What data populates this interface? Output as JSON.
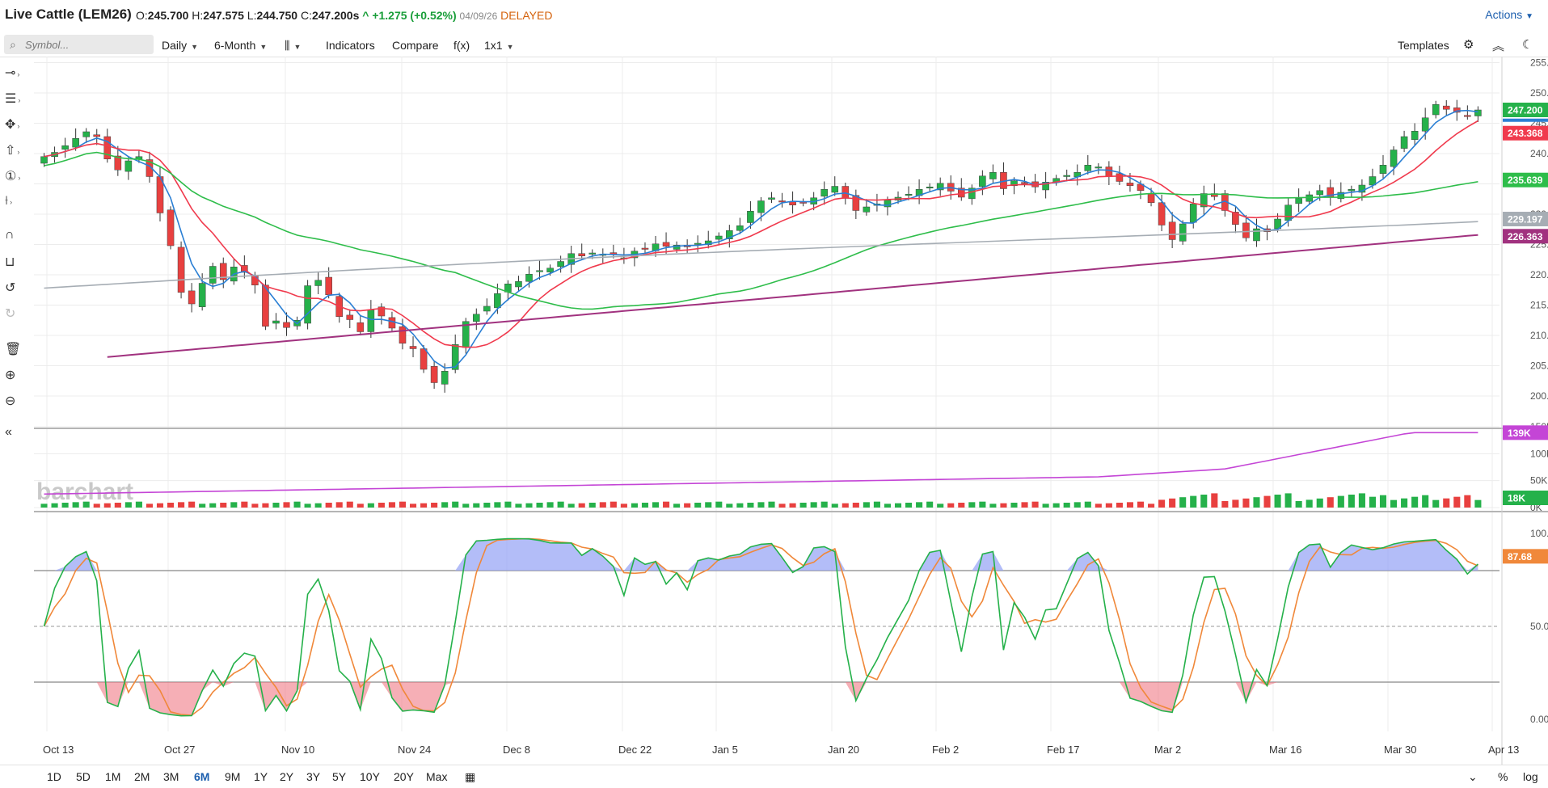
{
  "header": {
    "title": "Live Cattle (LEM26)",
    "open_label": "O:",
    "open": "245.700",
    "high_label": "H:",
    "high": "247.575",
    "low_label": "L:",
    "low": "244.750",
    "close_label": "C:",
    "close": "247.200s",
    "change": "^ +1.275 (+0.52%)",
    "date": "04/09/26",
    "status": "DELAYED",
    "actions_label": "Actions"
  },
  "toolbar": {
    "symbol_placeholder": "Symbol...",
    "interval": "Daily",
    "period": "6-Month",
    "chart_type_icon": "candlestick-icon",
    "indicators": "Indicators",
    "compare": "Compare",
    "fx": "f(x)",
    "layout": "1x1",
    "templates": "Templates"
  },
  "left_tools": [
    "crosshair-icon",
    "lines-icon",
    "move-icon",
    "shapes-icon",
    "annotation-icon",
    "measure-icon",
    "magnet-icon",
    "unlock-icon",
    "undo-icon",
    "redo-icon",
    "trash-icon",
    "zoom-in-icon",
    "zoom-out-icon",
    "collapse-icon"
  ],
  "ranges": [
    "1D",
    "5D",
    "1M",
    "2M",
    "3M",
    "6M",
    "9M",
    "1Y",
    "2Y",
    "3Y",
    "5Y",
    "10Y",
    "20Y",
    "Max"
  ],
  "active_range": "6M",
  "bottom_right": {
    "percent": "%",
    "log": "log"
  },
  "watermark": "barchart",
  "colors": {
    "up": "#25b14a",
    "down": "#e8403f",
    "ma_blue": "#2a7fd4",
    "ma_red": "#f03a4d",
    "ma_green": "#2ebd4a",
    "ma_gray": "#a6adb4",
    "ma_purple": "#a1327f",
    "volume_avg": "#c445d6",
    "stoch_k": "#25b14a",
    "stoch_d": "#f0883a"
  },
  "chart_data": {
    "type": "candlestick",
    "x_ticks": [
      "Oct 13",
      "Oct 27",
      "Nov 10",
      "Nov 24",
      "Dec 8",
      "Dec 22",
      "Jan 5",
      "Jan 20",
      "Feb 2",
      "Feb 17",
      "Mar 2",
      "Mar 16",
      "Mar 30",
      "Apr 13"
    ],
    "price_axis": {
      "ylim": [
        196,
        256
      ],
      "ticks": [
        "255.000",
        "250.000",
        "245.000",
        "240.000",
        "235.000",
        "230.000",
        "225.000",
        "220.000",
        "215.000",
        "210.000",
        "205.000",
        "200.000"
      ]
    },
    "close_series": [
      239.5,
      240.2,
      241.3,
      242.5,
      243.6,
      242.8,
      239.1,
      237.3,
      238.8,
      239.5,
      236.2,
      230.2,
      224.8,
      217.1,
      215.2,
      218.6,
      221.4,
      219.2,
      221.3,
      220.4,
      218.3,
      211.5,
      212.4,
      211.3,
      212.5,
      218.2,
      219.1,
      216.7,
      213.1,
      212.6,
      210.6,
      214.2,
      213.2,
      211.2,
      208.7,
      207.8,
      204.4,
      202.2,
      204.1,
      208.5,
      212.3,
      213.5,
      214.8,
      216.9,
      218.5,
      218.9,
      220.1,
      220.7,
      221.1,
      222.2,
      223.5,
      223.1,
      223.6,
      223.4,
      223.3,
      222.8,
      223.9,
      224.2,
      225.1,
      224.7,
      224.9,
      224.6,
      225.2,
      225.6,
      226.4,
      227.3,
      228.1,
      230.5,
      232.2,
      232.7,
      232.1,
      231.5,
      231.9,
      232.7,
      234.1,
      234.6,
      232.6,
      230.6,
      231.2,
      231.7,
      232.3,
      232.8,
      233.3,
      234.1,
      234.5,
      235.1,
      233.8,
      232.8,
      234.3,
      236.3,
      236.9,
      234.2,
      235.5,
      235.1,
      234.5,
      235.3,
      235.9,
      236.4,
      236.9,
      238.1,
      237.8,
      236.2,
      235.4,
      234.7,
      233.9,
      231.9,
      228.2,
      225.8,
      228.4,
      231.7,
      233.4,
      232.9,
      230.6,
      228.3,
      226.1,
      227.6,
      227.1,
      229.2,
      231.5,
      232.6,
      233.2,
      233.9,
      232.8,
      233.6,
      234.1,
      234.8,
      236.2,
      238.1,
      240.6,
      242.8,
      243.7,
      245.9,
      248.1,
      247.3,
      246.8,
      246.2,
      247.2
    ],
    "last_price": "247.200",
    "moving_averages": [
      {
        "color": "blue",
        "last": "245.5"
      },
      {
        "color": "red",
        "last": "243.368"
      },
      {
        "color": "green",
        "last": "235.639"
      },
      {
        "color": "gray",
        "last": "229.197"
      },
      {
        "color": "purple",
        "last": "226.363"
      }
    ],
    "volume": {
      "ylim": [
        0,
        150
      ],
      "ticks": [
        "150K",
        "100K",
        "50K",
        "0K"
      ],
      "last": "18K",
      "average_last": "139K"
    },
    "stochastic": {
      "ylim": [
        0,
        100
      ],
      "ticks": [
        "100.00",
        "50.00",
        "0.00"
      ],
      "last": "87.68",
      "overbought": 80,
      "oversold": 20
    }
  }
}
